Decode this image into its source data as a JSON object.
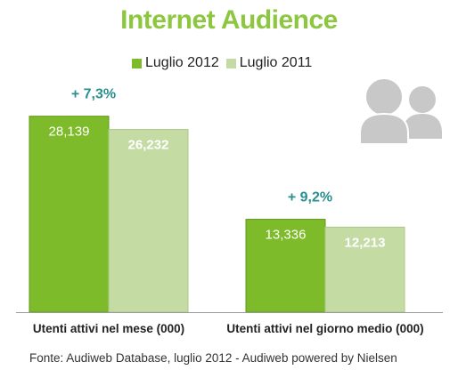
{
  "title": "Internet Audience",
  "source": "Fonte: Audiweb Database, luglio 2012 - Audiweb powered by Nielsen",
  "colors": {
    "title": "#8dc63f",
    "series_2012": "#7dbb2a",
    "series_2011": "#c4dca4",
    "growth": "#2a8f8f",
    "icon": "#c8c8c8",
    "axis": "#9a9a9a"
  },
  "icon_name": "users-group-icon",
  "chart_data": {
    "type": "bar",
    "categories": [
      "Utenti attivi nel mese (000)",
      "Utenti attivi nel giorno medio (000)"
    ],
    "series": [
      {
        "name": "Luglio 2012",
        "values": [
          28139,
          13336
        ],
        "labels": [
          "28,139",
          "13,336"
        ]
      },
      {
        "name": "Luglio 2011",
        "values": [
          26232,
          12213
        ],
        "labels": [
          "26,232",
          "12,213"
        ]
      }
    ],
    "growth_labels": [
      "+ 7,3%",
      "+ 9,2%"
    ],
    "title": "Internet Audience",
    "ylim": [
      0,
      30000
    ],
    "grid": false,
    "legend": "top"
  }
}
